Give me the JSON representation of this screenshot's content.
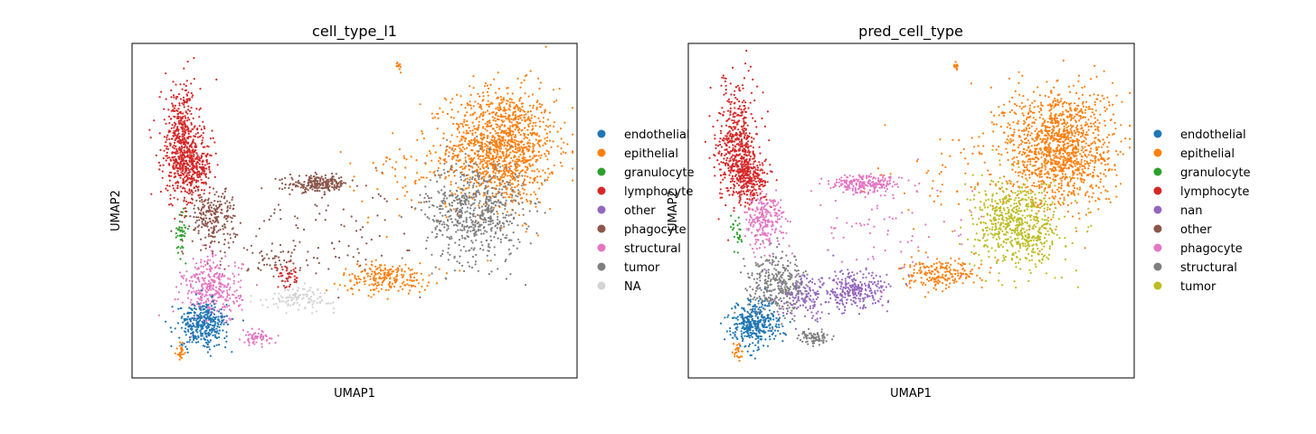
{
  "chart_data": [
    {
      "type": "scatter",
      "title": "cell_type_l1",
      "xlabel": "UMAP1",
      "ylabel": "UMAP2",
      "xlim": [
        0,
        100
      ],
      "ylim": [
        0,
        100
      ],
      "ticks": "none",
      "grid": false,
      "legend": "right",
      "legend_entries": [
        {
          "name": "endothelial",
          "color": "#1f77b4"
        },
        {
          "name": "epithelial",
          "color": "#ff7f0e"
        },
        {
          "name": "granulocyte",
          "color": "#2ca02c"
        },
        {
          "name": "lymphocyte",
          "color": "#d62728"
        },
        {
          "name": "other",
          "color": "#9467bd"
        },
        {
          "name": "phagocyte",
          "color": "#8c564b"
        },
        {
          "name": "structural",
          "color": "#e377c2"
        },
        {
          "name": "tumor",
          "color": "#7f7f7f"
        },
        {
          "name": "NA",
          "color": "#d3d3d3"
        }
      ],
      "clusters": [
        {
          "label": "epithelial",
          "color": "#ff7f0e",
          "cx": 83,
          "cy": 69,
          "rx": 11,
          "ry": 16,
          "n": 1300
        },
        {
          "label": "tumor",
          "color": "#7f7f7f",
          "cx": 77,
          "cy": 50,
          "rx": 10,
          "ry": 14,
          "n": 650
        },
        {
          "label": "epithelial",
          "color": "#ff7f0e",
          "cx": 57,
          "cy": 30,
          "rx": 9,
          "ry": 4,
          "n": 220
        },
        {
          "label": "epithelial",
          "color": "#ff7f0e",
          "cx": 60,
          "cy": 93,
          "rx": 0.6,
          "ry": 1.2,
          "n": 12
        },
        {
          "label": "epithelial",
          "color": "#ff7f0e",
          "cx": 11,
          "cy": 8,
          "rx": 1,
          "ry": 3,
          "n": 25
        },
        {
          "label": "lymphocyte",
          "color": "#d62728",
          "cx": 11,
          "cy": 70,
          "rx": 4,
          "ry": 16,
          "n": 500
        },
        {
          "label": "lymphocyte",
          "color": "#d62728",
          "cx": 14,
          "cy": 63,
          "rx": 4,
          "ry": 7,
          "n": 250
        },
        {
          "label": "lymphocyte",
          "color": "#d62728",
          "cx": 35,
          "cy": 30,
          "rx": 3,
          "ry": 3,
          "n": 40
        },
        {
          "label": "phagocyte",
          "color": "#8c564b",
          "cx": 42,
          "cy": 58,
          "rx": 6,
          "ry": 2.2,
          "n": 220
        },
        {
          "label": "phagocyte",
          "color": "#8c564b",
          "cx": 18,
          "cy": 48,
          "rx": 5,
          "ry": 8,
          "n": 250
        },
        {
          "label": "phagocyte",
          "color": "#8c564b",
          "cx": 33,
          "cy": 35,
          "rx": 6,
          "ry": 6,
          "n": 60
        },
        {
          "label": "structural",
          "color": "#e377c2",
          "cx": 18,
          "cy": 26,
          "rx": 6,
          "ry": 9,
          "n": 350
        },
        {
          "label": "structural",
          "color": "#e377c2",
          "cx": 28,
          "cy": 12,
          "rx": 3,
          "ry": 2,
          "n": 60
        },
        {
          "label": "endothelial",
          "color": "#1f77b4",
          "cx": 16,
          "cy": 16,
          "rx": 5,
          "ry": 6,
          "n": 360
        },
        {
          "label": "granulocyte",
          "color": "#2ca02c",
          "cx": 11,
          "cy": 44,
          "rx": 1.2,
          "ry": 6,
          "n": 40
        },
        {
          "label": "NA",
          "color": "#d3d3d3",
          "cx": 38,
          "cy": 24,
          "rx": 7,
          "ry": 3,
          "n": 120
        },
        {
          "label": "mixed",
          "color": "#8c564b",
          "cx": 45,
          "cy": 45,
          "rx": 18,
          "ry": 14,
          "n": 90
        },
        {
          "label": "mixed",
          "color": "#ff7f0e",
          "cx": 60,
          "cy": 60,
          "rx": 12,
          "ry": 12,
          "n": 60
        }
      ]
    },
    {
      "type": "scatter",
      "title": "pred_cell_type",
      "xlabel": "UMAP1",
      "ylabel": "UMAP2",
      "xlim": [
        0,
        100
      ],
      "ylim": [
        0,
        100
      ],
      "ticks": "none",
      "grid": false,
      "legend": "right",
      "legend_entries": [
        {
          "name": "endothelial",
          "color": "#1f77b4"
        },
        {
          "name": "epithelial",
          "color": "#ff7f0e"
        },
        {
          "name": "granulocyte",
          "color": "#2ca02c"
        },
        {
          "name": "lymphocyte",
          "color": "#d62728"
        },
        {
          "name": "nan",
          "color": "#9467bd"
        },
        {
          "name": "other",
          "color": "#8c564b"
        },
        {
          "name": "phagocyte",
          "color": "#e377c2"
        },
        {
          "name": "structural",
          "color": "#7f7f7f"
        },
        {
          "name": "tumor",
          "color": "#bcbd22"
        }
      ],
      "clusters": [
        {
          "label": "epithelial",
          "color": "#ff7f0e",
          "cx": 83,
          "cy": 69,
          "rx": 11,
          "ry": 16,
          "n": 1300
        },
        {
          "label": "tumor",
          "color": "#bcbd22",
          "cx": 74,
          "cy": 46,
          "rx": 9,
          "ry": 12,
          "n": 650
        },
        {
          "label": "epithelial",
          "color": "#ff7f0e",
          "cx": 57,
          "cy": 31,
          "rx": 8,
          "ry": 4,
          "n": 200
        },
        {
          "label": "epithelial",
          "color": "#ff7f0e",
          "cx": 60,
          "cy": 93,
          "rx": 0.6,
          "ry": 1.2,
          "n": 12
        },
        {
          "label": "epithelial",
          "color": "#ff7f0e",
          "cx": 11,
          "cy": 8,
          "rx": 1,
          "ry": 3,
          "n": 25
        },
        {
          "label": "lymphocyte",
          "color": "#d62728",
          "cx": 11,
          "cy": 70,
          "rx": 4,
          "ry": 16,
          "n": 500
        },
        {
          "label": "lymphocyte",
          "color": "#d62728",
          "cx": 14,
          "cy": 60,
          "rx": 4,
          "ry": 7,
          "n": 250
        },
        {
          "label": "phagocyte",
          "color": "#e377c2",
          "cx": 40,
          "cy": 58,
          "rx": 7,
          "ry": 2.5,
          "n": 230
        },
        {
          "label": "phagocyte",
          "color": "#e377c2",
          "cx": 17,
          "cy": 47,
          "rx": 4,
          "ry": 8,
          "n": 220
        },
        {
          "label": "nan",
          "color": "#9467bd",
          "cx": 37,
          "cy": 26,
          "rx": 7,
          "ry": 5,
          "n": 280
        },
        {
          "label": "nan",
          "color": "#9467bd",
          "cx": 26,
          "cy": 24,
          "rx": 6,
          "ry": 6,
          "n": 140
        },
        {
          "label": "structural",
          "color": "#7f7f7f",
          "cx": 20,
          "cy": 28,
          "rx": 6,
          "ry": 8,
          "n": 330
        },
        {
          "label": "structural",
          "color": "#7f7f7f",
          "cx": 28,
          "cy": 12,
          "rx": 3,
          "ry": 2,
          "n": 80
        },
        {
          "label": "endothelial",
          "color": "#1f77b4",
          "cx": 15,
          "cy": 16,
          "rx": 5,
          "ry": 6,
          "n": 360
        },
        {
          "label": "granulocyte",
          "color": "#2ca02c",
          "cx": 11,
          "cy": 44,
          "rx": 1.2,
          "ry": 5,
          "n": 25
        },
        {
          "label": "mixed",
          "color": "#e377c2",
          "cx": 45,
          "cy": 45,
          "rx": 18,
          "ry": 14,
          "n": 70
        },
        {
          "label": "mixed",
          "color": "#ff7f0e",
          "cx": 60,
          "cy": 60,
          "rx": 12,
          "ry": 12,
          "n": 50
        }
      ]
    }
  ]
}
